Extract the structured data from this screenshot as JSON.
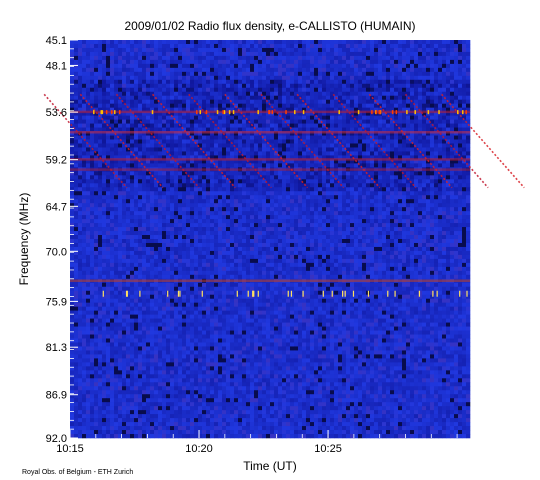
{
  "chart_data": {
    "type": "heatmap",
    "title": "2009/01/02  Radio flux density, e-CALLISTO (HUMAIN)",
    "xlabel": "Time (UT)",
    "ylabel": "Frequency (MHz)",
    "x_ticks": [
      "10:15",
      "10:20",
      "10:25"
    ],
    "x_range_min": [
      15,
      30.5
    ],
    "x_tick_values_min": [
      15,
      20,
      25
    ],
    "y_ticks": [
      "45.1",
      "48.1",
      "53.6",
      "59.2",
      "64.7",
      "70.0",
      "75.9",
      "81.3",
      "86.9",
      "92.0"
    ],
    "y_range": [
      45.1,
      92.0
    ],
    "y_inverted": true,
    "colormap": [
      "#000000",
      "#1018a0",
      "#2038e0",
      "#b01020",
      "#ff2000",
      "#ffc000",
      "#ffffff"
    ],
    "features": {
      "drift_bursts": "repeated negatively drifting emission strips between 51 and 63 MHz",
      "interference_lines_mhz": [
        53.6,
        56.0,
        59.2,
        60.4,
        73.5
      ],
      "spike_row_mhz": 75.0
    },
    "credit": "Royal Obs. of Belgium - ETH Zurich"
  }
}
